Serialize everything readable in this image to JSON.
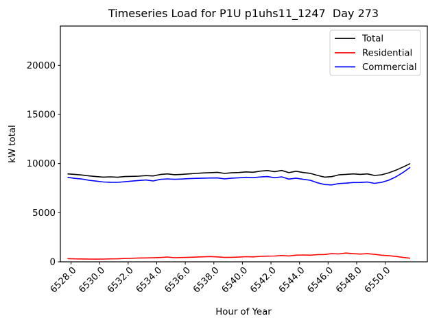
{
  "window": {
    "title": "Timeseries Load for P1U p1uhs11_1247  Day 273"
  },
  "chart_data": {
    "type": "line",
    "title": "Timeseries Load for P1U p1uhs11_1247  Day 273",
    "xlabel": "Hour of Year",
    "ylabel": "kW total",
    "xlim": [
      6527.25,
      6552.95
    ],
    "ylim": [
      0,
      24000
    ],
    "grid": false,
    "legend": {
      "position": "upper right"
    },
    "xticks": {
      "values": [
        6528,
        6530,
        6532,
        6534,
        6536,
        6538,
        6540,
        6542,
        6544,
        6546,
        6548,
        6550
      ],
      "labels": [
        "6528.0",
        "6530.0",
        "6532.0",
        "6534.0",
        "6536.0",
        "6538.0",
        "6540.0",
        "6542.0",
        "6544.0",
        "6546.0",
        "6548.0",
        "6550.0"
      ],
      "rotation": 45
    },
    "yticks": {
      "values": [
        0,
        5000,
        10000,
        15000,
        20000
      ],
      "labels": [
        "0",
        "5000",
        "10000",
        "15000",
        "20000"
      ]
    },
    "x": [
      6527.75,
      6528.25,
      6528.75,
      6529.25,
      6529.75,
      6530.25,
      6530.75,
      6531.25,
      6531.75,
      6532.25,
      6532.75,
      6533.25,
      6533.75,
      6534.25,
      6534.75,
      6535.25,
      6535.75,
      6536.25,
      6536.75,
      6537.25,
      6537.75,
      6538.25,
      6538.75,
      6539.25,
      6539.75,
      6540.25,
      6540.75,
      6541.25,
      6541.75,
      6542.25,
      6542.75,
      6543.25,
      6543.75,
      6544.25,
      6544.75,
      6545.25,
      6545.75,
      6546.25,
      6546.75,
      6547.25,
      6547.75,
      6548.25,
      6548.75,
      6549.25,
      6549.75,
      6550.25,
      6550.75,
      6551.25,
      6551.75
    ],
    "series": [
      {
        "name": "Total",
        "color": "#000000",
        "values": [
          8950,
          8900,
          8840,
          8750,
          8680,
          8620,
          8650,
          8610,
          8680,
          8700,
          8720,
          8780,
          8740,
          8890,
          8950,
          8870,
          8900,
          8950,
          9000,
          9050,
          9080,
          9110,
          9000,
          9060,
          9090,
          9150,
          9120,
          9230,
          9290,
          9180,
          9300,
          9080,
          9220,
          9090,
          9010,
          8800,
          8620,
          8670,
          8850,
          8900,
          8950,
          8900,
          8950,
          8790,
          8860,
          9060,
          9330,
          9650,
          10000
        ]
      },
      {
        "name": "Residential",
        "color": "#ff0000",
        "values": [
          330,
          300,
          290,
          280,
          275,
          280,
          300,
          310,
          340,
          360,
          390,
          400,
          410,
          440,
          490,
          420,
          440,
          460,
          480,
          510,
          540,
          500,
          450,
          460,
          480,
          520,
          500,
          560,
          580,
          590,
          640,
          600,
          680,
          700,
          680,
          730,
          750,
          830,
          800,
          890,
          830,
          790,
          830,
          760,
          680,
          620,
          550,
          450,
          370
        ]
      },
      {
        "name": "Commercial",
        "color": "#0000ff",
        "values": [
          8600,
          8500,
          8430,
          8300,
          8220,
          8130,
          8100,
          8090,
          8150,
          8220,
          8280,
          8330,
          8230,
          8390,
          8440,
          8400,
          8430,
          8470,
          8500,
          8520,
          8530,
          8540,
          8450,
          8520,
          8550,
          8600,
          8570,
          8640,
          8680,
          8560,
          8650,
          8420,
          8520,
          8400,
          8300,
          8050,
          7870,
          7830,
          7970,
          8010,
          8070,
          8080,
          8120,
          7990,
          8090,
          8310,
          8650,
          9100,
          9620
        ]
      }
    ]
  }
}
